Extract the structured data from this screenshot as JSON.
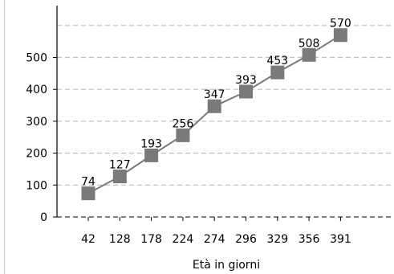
{
  "chart_data": {
    "type": "line",
    "xlabel": "Età in giorni",
    "ylabel": "",
    "categories": [
      "42",
      "128",
      "178",
      "224",
      "274",
      "296",
      "329",
      "356",
      "391"
    ],
    "series": [
      {
        "values": [
          74,
          127,
          193,
          256,
          347,
          393,
          453,
          508,
          570
        ]
      }
    ],
    "ylim": [
      0,
      600
    ],
    "yticks": [
      0,
      100,
      200,
      300,
      400,
      500
    ],
    "grid": "horizontal dashed",
    "line_color": "#7a7a7a",
    "marker": "square",
    "marker_color": "#7a7a7a"
  }
}
